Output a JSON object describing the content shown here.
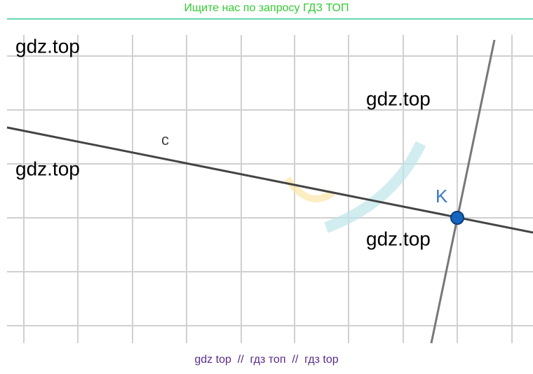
{
  "header": {
    "text": "Ищите нас по запросу ГДЗ ТОП"
  },
  "watermarks": [
    "gdz.top",
    "gdz.top",
    "gdz.top",
    "gdz.top"
  ],
  "labels": {
    "line": "c",
    "point": "K"
  },
  "footer": {
    "text": "gdz top  //  гдз топ  //  гдз top"
  }
}
